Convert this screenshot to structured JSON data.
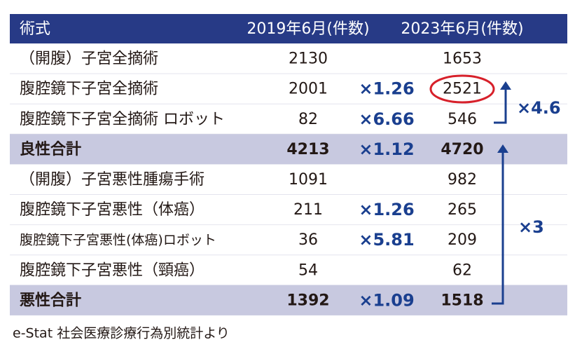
{
  "table": {
    "header": [
      "術式",
      "2019年6月(件数)",
      "2023年6月(件数)"
    ],
    "rows": [
      {
        "name": "（開腹）子宮全摘術",
        "y2019": 2130,
        "y2023": 1653
      },
      {
        "name": "腹腔鏡下子宮全摘術",
        "y2019": 2001,
        "ratio": "×1.26",
        "y2023": 2521
      },
      {
        "name": "腹腔鏡下子宮全摘術 ロボット",
        "y2019": 82,
        "ratio": "×6.66",
        "y2023": 546
      },
      {
        "name": "良性合計",
        "y2019": 4213,
        "ratio": "×1.12",
        "y2023": 4720,
        "total": true
      },
      {
        "name": "（開腹）子宮悪性腫瘍手術",
        "y2019": 1091,
        "y2023": 982
      },
      {
        "name": "腹腔鏡下子宮悪性（体癌）",
        "y2019": 211,
        "ratio": "×1.26",
        "y2023": 265
      },
      {
        "name": "腹腔鏡下子宮悪性(体癌)ロボット",
        "y2019": 36,
        "ratio": "×5.81",
        "y2023": 209
      },
      {
        "name": "腹腔鏡下子宮悪性（頸癌）",
        "y2019": 54,
        "y2023": 62
      },
      {
        "name": "悪性合計",
        "y2019": 1392,
        "ratio": "×1.09",
        "y2023": 1518,
        "total": true
      }
    ]
  },
  "annotations": [
    "×4.6",
    "×3"
  ],
  "source": "e-Stat 社会医療診療行為別統計より"
}
